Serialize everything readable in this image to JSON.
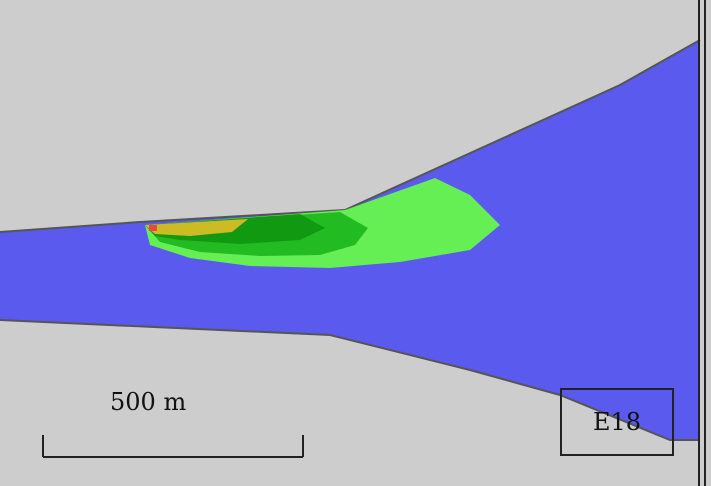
{
  "map": {
    "scale_bar": {
      "label": "500 m",
      "length_m": 500
    },
    "section_label": "E18",
    "colors": {
      "land": "#cdcdcd",
      "water": "#5a5aee",
      "light_green": "#66ee55",
      "green": "#22bb22",
      "dark_green": "#119911",
      "yellow": "#ccbb22",
      "red": "#ee4444",
      "border": "#222222"
    }
  }
}
